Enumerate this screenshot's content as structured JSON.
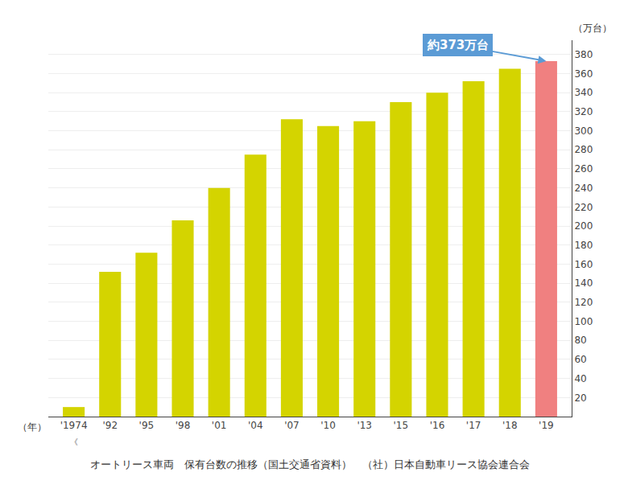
{
  "chart_data": {
    "type": "bar",
    "caption": "オートリース車両　保有台数の推移（国土交通省資料）　（社）日本自動車リース協会連合会",
    "xlabel": "（年）",
    "ylabel": "（万台）",
    "categories": [
      "'1974",
      "'92",
      "'95",
      "'98",
      "'01",
      "'04",
      "'07",
      "'10",
      "'13",
      "'15",
      "'16",
      "'17",
      "'18",
      "'19"
    ],
    "values": [
      10,
      152,
      172,
      206,
      240,
      275,
      312,
      305,
      310,
      330,
      340,
      352,
      365,
      373
    ],
    "colors": [
      "#d4d400",
      "#d4d400",
      "#d4d400",
      "#d4d400",
      "#d4d400",
      "#d4d400",
      "#d4d400",
      "#d4d400",
      "#d4d400",
      "#d4d400",
      "#d4d400",
      "#d4d400",
      "#d4d400",
      "#f08080"
    ],
    "ylim": [
      0,
      395
    ],
    "yticks": [
      20,
      40,
      60,
      80,
      100,
      120,
      140,
      160,
      180,
      200,
      220,
      240,
      260,
      280,
      300,
      320,
      340,
      360,
      380
    ],
    "grid": true,
    "annotations": [
      {
        "text": "約373万台",
        "x": "'19",
        "y": 373,
        "color": "#5b9bd5"
      },
      {
        "text": "《",
        "x": "'1974"
      }
    ]
  }
}
